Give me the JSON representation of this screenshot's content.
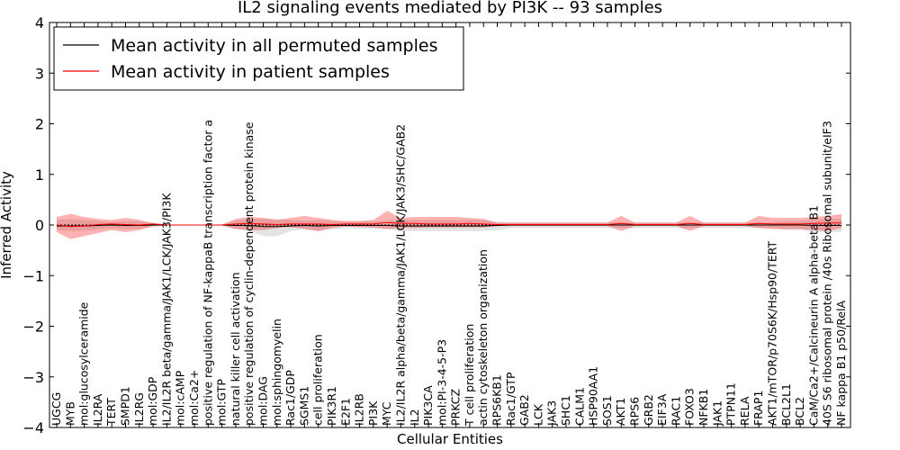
{
  "chart_data": {
    "type": "line",
    "title": "IL2 signaling events mediated by PI3K -- 93 samples",
    "xlabel": "Cellular Entities",
    "ylabel": "Inferred Activity",
    "ylim": [
      -4,
      4
    ],
    "yticks": [
      -4,
      -3,
      -2,
      -1,
      0,
      1,
      2,
      3,
      4
    ],
    "legend": {
      "position": "top-left",
      "entries": [
        {
          "label": "Mean activity in all permuted samples",
          "color": "#000000"
        },
        {
          "label": "Mean activity in patient samples",
          "color": "#ff0000"
        }
      ]
    },
    "categories": [
      "UGCG",
      "MYB",
      "mol:glucosylceramide",
      "IL2RA",
      "TERT",
      "SMPD1",
      "IL2RG",
      "mol:GDP",
      "IL2/IL2R beta/gamma/JAK1/LCK/JAK3/PI3K",
      "mol:cAMP",
      "mol:Ca2+",
      "positive regulation of NF-kappaB transcription factor a",
      "mol:GTP",
      "natural killer cell activation",
      "positive regulation of cyclin-dependent protein kinase",
      "mol:DAG",
      "mol:sphingomyelin",
      "Rac1/GDP",
      "SGMS1",
      "cell proliferation",
      "PIK3R1",
      "E2F1",
      "IL2RB",
      "PI3K",
      "MYC",
      "IL2/IL2R alpha/beta/gamma/JAK1/LCK/JAK3/SHC/GAB2",
      "IL2",
      "PIK3CA",
      "mol:PI-3-4-5-P3",
      "PRKCZ",
      "T cell proliferation",
      "actin cytoskeleton organization",
      "RPS6KB1",
      "Rac1/GTP",
      "GAB2",
      "LCK",
      "JAK3",
      "SHC1",
      "CALM1",
      "HSP90AA1",
      "SOS1",
      "AKT1",
      "RPS6",
      "GRB2",
      "EIF3A",
      "RAC1",
      "FOXO3",
      "NFKB1",
      "JAK1",
      "PTPN11",
      "RELA",
      "FRAP1",
      "AKT1/mTOR/p70S6K/Hsp90/TERT",
      "BCL2L1",
      "BCL2",
      "CaM/Ca2+/Calcineurin A alpha-beta B1",
      "40S S6 ribosomal protein /40s Ribosomal subunit/eIF3",
      "NF kappa B1 p50/RelA"
    ],
    "series": [
      {
        "name": "Mean activity in all permuted samples",
        "color": "#000000",
        "values": [
          -0.02,
          -0.02,
          -0.02,
          -0.01,
          0.0,
          -0.01,
          -0.01,
          0.0,
          0.0,
          0.0,
          0.0,
          0.0,
          0.0,
          -0.01,
          -0.01,
          -0.03,
          -0.03,
          -0.02,
          -0.01,
          -0.02,
          -0.01,
          -0.01,
          -0.01,
          -0.01,
          -0.01,
          -0.02,
          -0.02,
          -0.02,
          -0.02,
          -0.02,
          -0.02,
          -0.02,
          -0.01,
          0.0,
          0.0,
          0.0,
          0.0,
          0.0,
          0.0,
          0.0,
          0.0,
          0.0,
          0.0,
          0.0,
          0.0,
          0.0,
          0.0,
          0.0,
          0.0,
          0.0,
          0.0,
          0.0,
          0.0,
          0.0,
          0.0,
          -0.01,
          -0.01,
          -0.01
        ],
        "band_low": [
          -0.1,
          -0.12,
          -0.12,
          -0.08,
          -0.06,
          -0.08,
          -0.08,
          -0.02,
          -0.01,
          -0.01,
          -0.01,
          -0.01,
          -0.01,
          -0.08,
          -0.12,
          -0.22,
          -0.22,
          -0.12,
          -0.08,
          -0.12,
          -0.08,
          -0.06,
          -0.07,
          -0.07,
          -0.08,
          -0.12,
          -0.12,
          -0.12,
          -0.12,
          -0.12,
          -0.12,
          -0.12,
          -0.1,
          -0.06,
          -0.06,
          -0.06,
          -0.06,
          -0.06,
          -0.06,
          -0.06,
          -0.06,
          -0.06,
          -0.06,
          -0.06,
          -0.06,
          -0.06,
          -0.06,
          -0.06,
          -0.06,
          -0.06,
          -0.06,
          -0.06,
          -0.06,
          -0.1,
          -0.1,
          -0.14,
          -0.14,
          -0.14
        ],
        "band_high": [
          0.1,
          0.12,
          0.1,
          0.08,
          0.06,
          0.08,
          0.08,
          0.02,
          0.01,
          0.01,
          0.01,
          0.01,
          0.01,
          0.08,
          0.12,
          0.12,
          0.12,
          0.1,
          0.08,
          0.1,
          0.08,
          0.06,
          0.07,
          0.07,
          0.08,
          0.1,
          0.1,
          0.1,
          0.1,
          0.1,
          0.1,
          0.1,
          0.06,
          0.05,
          0.05,
          0.05,
          0.05,
          0.05,
          0.05,
          0.05,
          0.05,
          0.05,
          0.05,
          0.05,
          0.05,
          0.05,
          0.05,
          0.05,
          0.05,
          0.05,
          0.05,
          0.05,
          0.05,
          0.08,
          0.08,
          0.1,
          0.12,
          0.12
        ]
      },
      {
        "name": "Mean activity in patient samples",
        "color": "#ff0000",
        "values": [
          0.0,
          -0.03,
          -0.02,
          0.01,
          0.02,
          0.01,
          0.0,
          0.02,
          0.0,
          0.0,
          0.0,
          0.0,
          0.0,
          0.02,
          0.03,
          0.02,
          0.01,
          0.02,
          0.02,
          0.02,
          0.01,
          0.02,
          0.02,
          0.02,
          0.05,
          0.03,
          0.03,
          0.02,
          0.02,
          0.02,
          0.03,
          0.02,
          0.01,
          0.01,
          0.01,
          0.01,
          0.01,
          0.01,
          0.01,
          0.01,
          0.01,
          0.03,
          0.01,
          0.01,
          0.01,
          0.01,
          0.03,
          0.01,
          0.01,
          0.01,
          0.01,
          0.03,
          0.02,
          0.02,
          0.02,
          0.03,
          0.04,
          0.04
        ],
        "band_low": [
          -0.14,
          -0.28,
          -0.22,
          -0.16,
          -0.1,
          -0.14,
          -0.1,
          -0.03,
          -0.01,
          -0.01,
          -0.01,
          -0.01,
          -0.01,
          -0.08,
          -0.1,
          -0.1,
          -0.06,
          -0.04,
          -0.08,
          -0.12,
          -0.06,
          -0.03,
          -0.04,
          -0.05,
          -0.08,
          -0.06,
          -0.06,
          -0.05,
          -0.05,
          -0.05,
          -0.05,
          -0.05,
          -0.02,
          -0.02,
          -0.02,
          -0.02,
          -0.02,
          -0.02,
          -0.02,
          -0.02,
          -0.02,
          -0.12,
          -0.02,
          -0.02,
          -0.02,
          -0.02,
          -0.12,
          -0.02,
          -0.02,
          -0.02,
          -0.02,
          -0.06,
          -0.08,
          -0.08,
          -0.08,
          -0.1,
          -0.12,
          -0.06
        ],
        "band_high": [
          0.16,
          0.22,
          0.16,
          0.12,
          0.1,
          0.14,
          0.1,
          0.04,
          0.01,
          0.01,
          0.01,
          0.01,
          0.01,
          0.12,
          0.16,
          0.14,
          0.1,
          0.14,
          0.18,
          0.14,
          0.1,
          0.08,
          0.08,
          0.1,
          0.28,
          0.14,
          0.16,
          0.16,
          0.16,
          0.16,
          0.14,
          0.12,
          0.05,
          0.05,
          0.05,
          0.05,
          0.05,
          0.05,
          0.05,
          0.05,
          0.05,
          0.18,
          0.05,
          0.05,
          0.05,
          0.05,
          0.18,
          0.05,
          0.05,
          0.05,
          0.05,
          0.18,
          0.14,
          0.14,
          0.14,
          0.16,
          0.18,
          0.22
        ]
      }
    ]
  }
}
